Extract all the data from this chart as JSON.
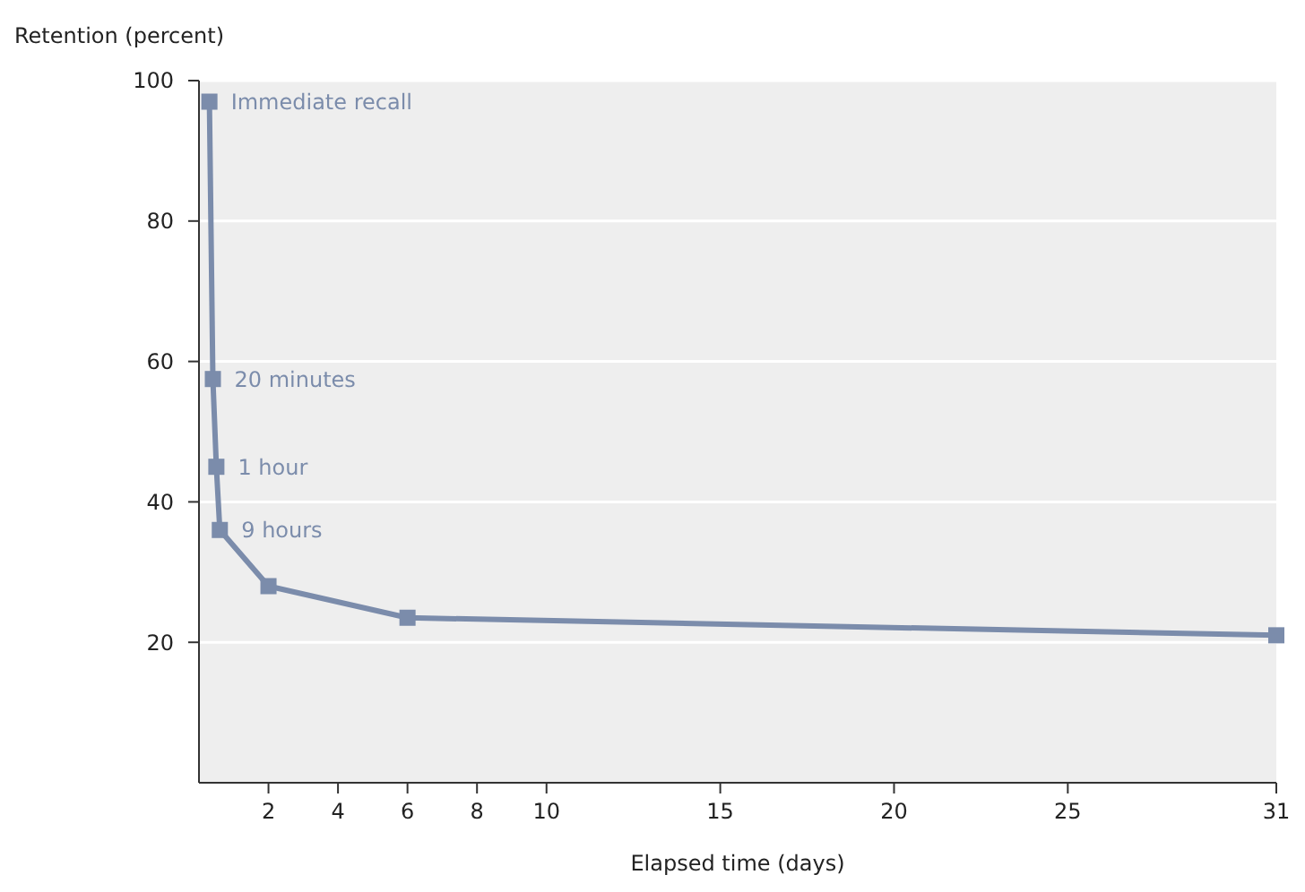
{
  "chart_data": {
    "type": "line",
    "ylabel": "Retention (percent)",
    "xlabel": "Elapsed time (days)",
    "x": [
      0.3,
      0.4,
      0.5,
      0.6,
      2,
      6,
      31
    ],
    "series": [
      {
        "color": "#7b8cab",
        "values": [
          97,
          57.5,
          45,
          36,
          28,
          23.5,
          21
        ]
      }
    ],
    "xlim": [
      0,
      31
    ],
    "xticks": [
      2,
      4,
      6,
      8,
      10,
      15,
      20,
      25,
      31
    ],
    "ylim": [
      0,
      100
    ],
    "yticks": [
      20,
      40,
      60,
      80,
      100
    ],
    "grid": "y",
    "marker": "square",
    "line_style": "solid",
    "annotations": [
      {
        "text": "Immediate recall",
        "x": 0.3,
        "y": 97
      },
      {
        "text": "20 minutes",
        "x": 0.4,
        "y": 57.5
      },
      {
        "text": "1 hour",
        "x": 0.5,
        "y": 45
      },
      {
        "text": "9 hours",
        "x": 0.6,
        "y": 36
      }
    ]
  }
}
